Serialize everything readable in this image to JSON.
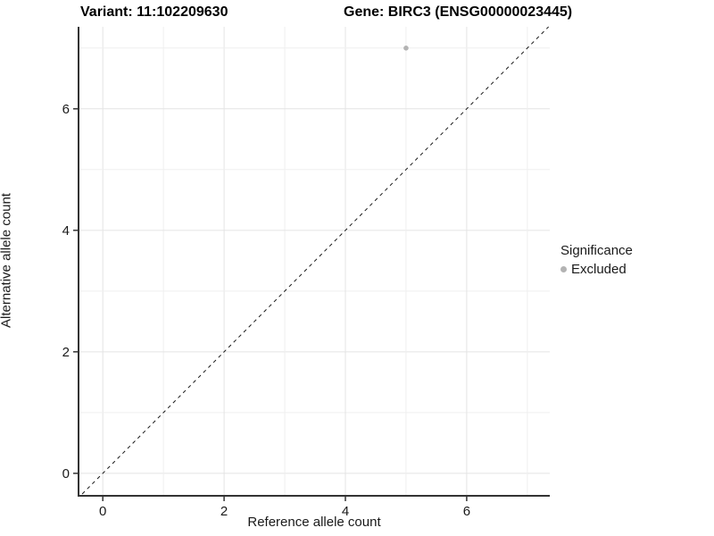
{
  "header": {
    "variant_title": "Variant: 11:102209630",
    "gene_title": "Gene: BIRC3 (ENSG00000023445)"
  },
  "chart_data": {
    "type": "scatter",
    "title": "Variant: 11:102209630   Gene: BIRC3 (ENSG00000023445)",
    "xlabel": "Reference allele count",
    "ylabel": "Alternative allele count",
    "xlim": [
      -0.4,
      7.37
    ],
    "ylim": [
      -0.37,
      7.35
    ],
    "xticks": [
      0,
      2,
      4,
      6
    ],
    "yticks": [
      0,
      2,
      4,
      6
    ],
    "grid": "on",
    "grid_values": [
      0,
      1,
      2,
      3,
      4,
      5,
      6,
      7
    ],
    "series": [
      {
        "name": "Excluded",
        "points": [
          {
            "x": 5,
            "y": 7
          }
        ],
        "color": "#b3b3b3"
      }
    ],
    "reference_line": {
      "type": "identity",
      "equation": "y = x",
      "style": "dashed",
      "color": "#1a1a1a"
    },
    "legend": {
      "title": "Significance",
      "position": "right",
      "items": [
        {
          "label": "Excluded",
          "color": "#b3b3b3",
          "marker": "circle"
        }
      ]
    }
  },
  "colors": {
    "background": "#ffffff",
    "axis_line": "#333333",
    "tick_label": "#1a1a1a",
    "grid_major": "#e4e4e4",
    "grid_minor": "#efefef",
    "point": "#b3b3b3"
  }
}
